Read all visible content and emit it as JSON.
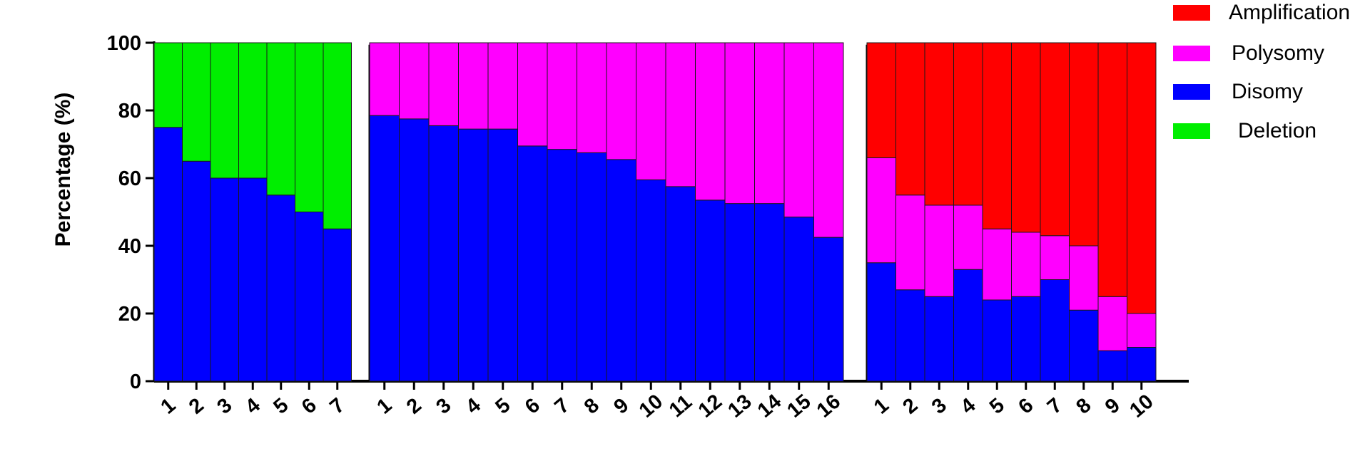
{
  "chart_data": {
    "type": "bar",
    "stacked": true,
    "ylabel": "Percentage (%)",
    "ylim": [
      0,
      100
    ],
    "yticks": [
      0,
      20,
      40,
      60,
      80,
      100
    ],
    "grid": false,
    "legend_position": "top-right",
    "legend": [
      {
        "name": "Amplification",
        "color": "#ff0000"
      },
      {
        "name": "Polysomy",
        "color": "#ff00ff"
      },
      {
        "name": "Disomy",
        "color": "#0000ff"
      },
      {
        "name": "Deletion",
        "color": "#00ee00"
      }
    ],
    "groups": [
      {
        "categories": [
          "1",
          "2",
          "3",
          "4",
          "5",
          "6",
          "7"
        ],
        "series": [
          {
            "name": "Disomy",
            "values": [
              75,
              65,
              60,
              60,
              55,
              50,
              45
            ]
          },
          {
            "name": "Deletion",
            "values": [
              25,
              35,
              40,
              40,
              45,
              50,
              55
            ]
          }
        ]
      },
      {
        "categories": [
          "1",
          "2",
          "3",
          "4",
          "5",
          "6",
          "7",
          "8",
          "9",
          "10",
          "11",
          "12",
          "13",
          "14",
          "15",
          "16"
        ],
        "series": [
          {
            "name": "Disomy",
            "values": [
              78.5,
              77.5,
              75.5,
              74.5,
              74.5,
              69.5,
              68.5,
              67.5,
              65.5,
              59.5,
              57.5,
              53.5,
              52.5,
              52.5,
              48.5,
              42.5
            ]
          },
          {
            "name": "Polysomy",
            "values": [
              21.5,
              22.5,
              24.5,
              25.5,
              25.5,
              30.5,
              31.5,
              32.5,
              34.5,
              40.5,
              42.5,
              46.5,
              47.5,
              47.5,
              51.5,
              57.5
            ]
          }
        ]
      },
      {
        "categories": [
          "1",
          "2",
          "3",
          "4",
          "5",
          "6",
          "7",
          "8",
          "9",
          "10"
        ],
        "series": [
          {
            "name": "Disomy",
            "values": [
              35,
              27,
              25,
              33,
              24,
              25,
              30,
              21,
              9,
              10
            ]
          },
          {
            "name": "Polysomy",
            "values": [
              31,
              28,
              27,
              19,
              21,
              19,
              13,
              19,
              16,
              10
            ]
          },
          {
            "name": "Amplification",
            "values": [
              34,
              45,
              48,
              48,
              55,
              56,
              57,
              60,
              75,
              80
            ]
          }
        ]
      }
    ]
  }
}
